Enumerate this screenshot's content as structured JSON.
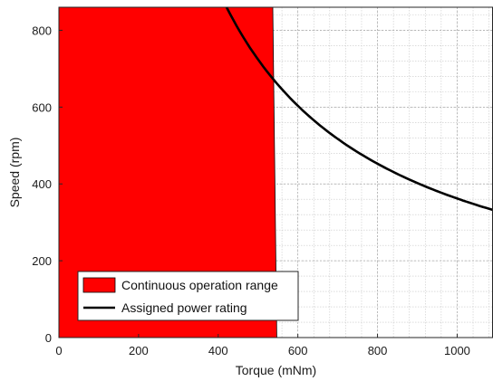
{
  "chart_data": {
    "type": "area",
    "xlabel": "Torque (mNm)",
    "ylabel": "Speed (rpm)",
    "xlim": [
      0,
      1090
    ],
    "ylim": [
      0,
      860
    ],
    "x_ticks": [
      0,
      200,
      400,
      600,
      800,
      1000
    ],
    "y_ticks": [
      0,
      200,
      400,
      600,
      800
    ],
    "grid": true,
    "legend": {
      "placement": "bottom-left",
      "entries": [
        {
          "label": "Continuous operation range",
          "color": "#ff0000",
          "marker": "patch"
        },
        {
          "label": "Assigned power rating",
          "color": "#000000",
          "marker": "line"
        }
      ]
    },
    "series": [
      {
        "name": "Continuous operation range",
        "kind": "filled-region",
        "color": "#ff0000",
        "x": [
          0,
          0,
          537,
          547
        ],
        "y": [
          0,
          860,
          860,
          0
        ]
      },
      {
        "name": "Assigned power rating",
        "kind": "line",
        "color": "#000000",
        "x": [
          421,
          450,
          500,
          546,
          600,
          650,
          700,
          750,
          800,
          850,
          900,
          950,
          1000,
          1050,
          1090
        ],
        "y": [
          860,
          804,
          724,
          663,
          603,
          557,
          517,
          483,
          452,
          426,
          402,
          381,
          362,
          345,
          332
        ]
      }
    ]
  }
}
